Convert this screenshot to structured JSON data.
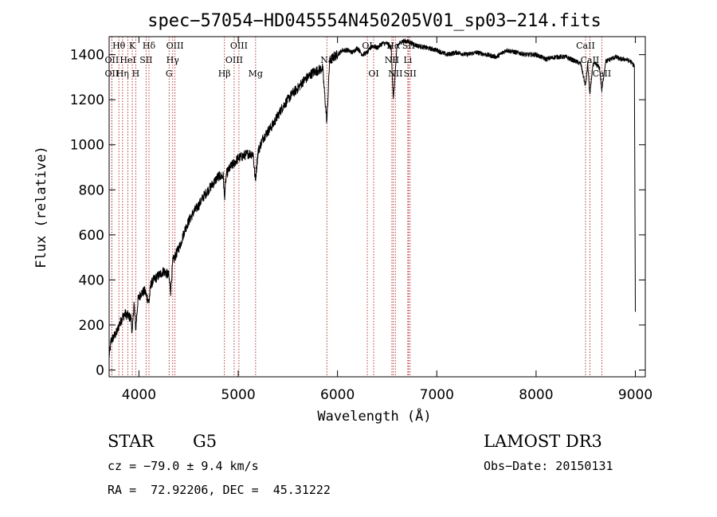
{
  "chart_data": {
    "type": "line",
    "title": "spec−57054−HD045554N450205V01_sp03−214.fits",
    "xlabel": "Wavelength (Å)",
    "ylabel": "Flux (relative)",
    "xlim": [
      3700,
      9100
    ],
    "ylim": [
      -30,
      1480
    ],
    "xticks": [
      4000,
      5000,
      6000,
      7000,
      8000,
      9000
    ],
    "yticks": [
      0,
      200,
      400,
      600,
      800,
      1000,
      1200,
      1400
    ],
    "grid": false,
    "line_color": "#000000",
    "marker_color": "#b22222",
    "series": [
      {
        "name": "spectrum",
        "x": [
          3700,
          3720,
          3750,
          3780,
          3800,
          3830,
          3860,
          3890,
          3920,
          3933,
          3950,
          3968,
          3990,
          4020,
          4060,
          4101,
          4120,
          4150,
          4200,
          4250,
          4300,
          4320,
          4340,
          4380,
          4420,
          4460,
          4500,
          4550,
          4600,
          4650,
          4700,
          4750,
          4800,
          4850,
          4861,
          4880,
          4920,
          4960,
          5000,
          5050,
          5100,
          5150,
          5172,
          5200,
          5250,
          5300,
          5350,
          5400,
          5450,
          5500,
          5550,
          5600,
          5650,
          5700,
          5750,
          5800,
          5850,
          5893,
          5920,
          5960,
          6000,
          6050,
          6100,
          6150,
          6200,
          6250,
          6300,
          6350,
          6400,
          6450,
          6500,
          6540,
          6563,
          6600,
          6650,
          6700,
          6750,
          6800,
          6900,
          7000,
          7100,
          7200,
          7300,
          7400,
          7500,
          7600,
          7700,
          7800,
          7900,
          8000,
          8100,
          8200,
          8300,
          8400,
          8450,
          8498,
          8520,
          8542,
          8570,
          8600,
          8640,
          8662,
          8700,
          8750,
          8800,
          8850,
          8900,
          8950,
          8990,
          9000
        ],
        "y": [
          60,
          130,
          150,
          170,
          200,
          230,
          250,
          240,
          230,
          160,
          300,
          180,
          310,
          340,
          350,
          300,
          380,
          400,
          420,
          440,
          420,
          350,
          480,
          520,
          560,
          620,
          660,
          700,
          730,
          770,
          800,
          830,
          860,
          860,
          760,
          870,
          900,
          920,
          940,
          950,
          960,
          960,
          840,
          970,
          1030,
          1060,
          1090,
          1130,
          1170,
          1200,
          1230,
          1250,
          1280,
          1300,
          1320,
          1330,
          1340,
          1100,
          1370,
          1390,
          1400,
          1420,
          1420,
          1410,
          1430,
          1400,
          1410,
          1440,
          1430,
          1450,
          1450,
          1430,
          1200,
          1440,
          1460,
          1460,
          1450,
          1440,
          1430,
          1420,
          1400,
          1410,
          1400,
          1410,
          1400,
          1390,
          1420,
          1410,
          1400,
          1400,
          1380,
          1390,
          1390,
          1370,
          1360,
          1260,
          1360,
          1220,
          1350,
          1360,
          1340,
          1240,
          1370,
          1380,
          1390,
          1380,
          1380,
          1370,
          1350,
          250
        ]
      }
    ],
    "line_markers": [
      {
        "x": 3727,
        "label": "OII",
        "row": 2
      },
      {
        "x": 3727,
        "label": "OII",
        "row": 1
      },
      {
        "x": 3798,
        "label": "Hθ",
        "row": 0
      },
      {
        "x": 3835,
        "label": "Hη",
        "row": 2
      },
      {
        "x": 3889,
        "label": "HeI",
        "row": 1
      },
      {
        "x": 3933,
        "label": "K",
        "row": 0
      },
      {
        "x": 3968,
        "label": "H",
        "row": 2
      },
      {
        "x": 4072,
        "label": "SII",
        "row": 1
      },
      {
        "x": 4101,
        "label": "Hδ",
        "row": 0
      },
      {
        "x": 4304,
        "label": "G",
        "row": 2
      },
      {
        "x": 4340,
        "label": "Hγ",
        "row": 1
      },
      {
        "x": 4363,
        "label": "OIII",
        "row": 0
      },
      {
        "x": 4861,
        "label": "Hβ",
        "row": 2
      },
      {
        "x": 4959,
        "label": "OIII",
        "row": 1
      },
      {
        "x": 5007,
        "label": "OIII",
        "row": 0
      },
      {
        "x": 5175,
        "label": "Mg",
        "row": 2
      },
      {
        "x": 5893,
        "label": "Na",
        "row": 1
      },
      {
        "x": 6300,
        "label": "OI",
        "row": 0
      },
      {
        "x": 6364,
        "label": "OI",
        "row": 2
      },
      {
        "x": 6548,
        "label": "NII",
        "row": 1
      },
      {
        "x": 6563,
        "label": "Hα",
        "row": 0
      },
      {
        "x": 6583,
        "label": "NII",
        "row": 2
      },
      {
        "x": 6708,
        "label": "Li",
        "row": 1
      },
      {
        "x": 6716,
        "label": "SII",
        "row": 0
      },
      {
        "x": 6731,
        "label": "SII",
        "row": 2
      },
      {
        "x": 8498,
        "label": "CaII",
        "row": 0
      },
      {
        "x": 8542,
        "label": "CaII",
        "row": 1
      },
      {
        "x": 8662,
        "label": "CaII",
        "row": 2
      }
    ]
  },
  "info": {
    "object_class": "STAR",
    "subclass": "G5",
    "survey": "LAMOST DR3",
    "cz": "cz = −79.0 ± 9.4 km/s",
    "obs_date": "Obs−Date: 20150131",
    "coords": "RA =  72.92206, DEC =  45.31222"
  }
}
